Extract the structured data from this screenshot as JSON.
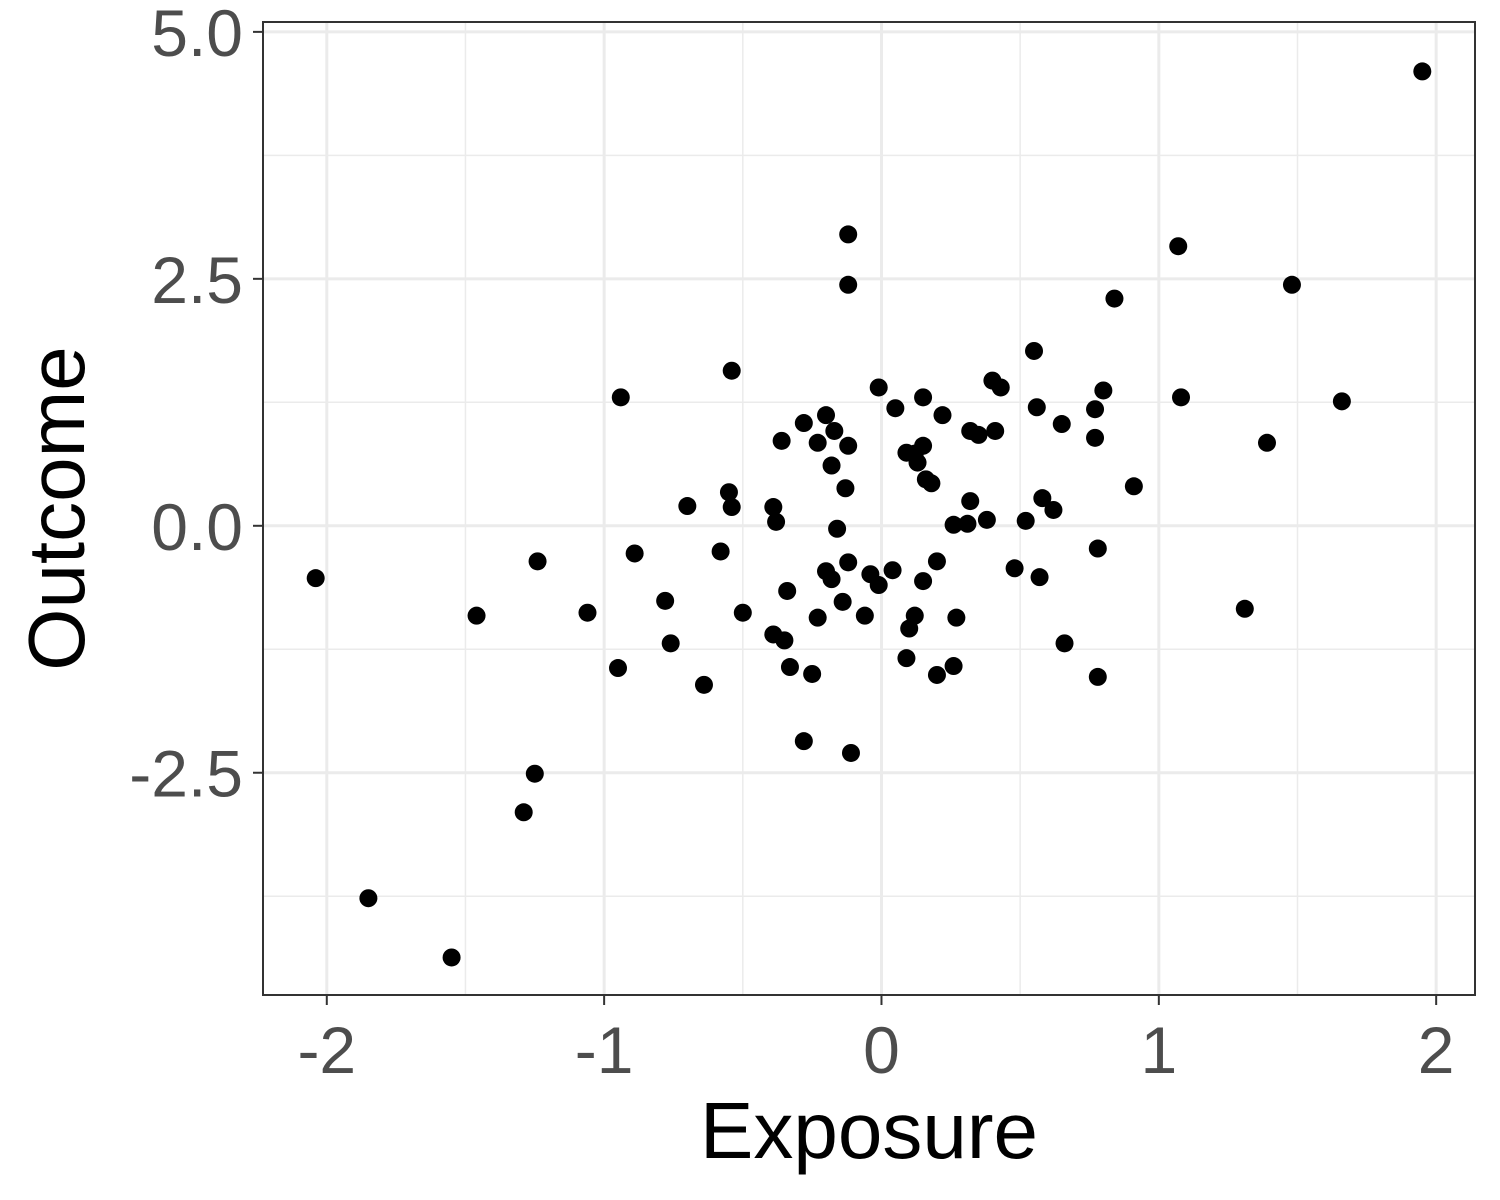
{
  "chart_data": {
    "type": "scatter",
    "title": "",
    "xlabel": "Exposure",
    "ylabel": "Outcome",
    "xlim": [
      -2.23,
      2.14
    ],
    "ylim": [
      -4.75,
      5.1
    ],
    "grid": true,
    "theme": "bw",
    "colors": {
      "point": "#000000",
      "grid": "#ebebeb",
      "panel_border": "#333333",
      "tick_label": "#4d4d4d"
    },
    "x_ticks": [
      {
        "value": -2,
        "label": "-2"
      },
      {
        "value": -1,
        "label": "-1"
      },
      {
        "value": 0,
        "label": "0"
      },
      {
        "value": 1,
        "label": "1"
      },
      {
        "value": 2,
        "label": "2"
      }
    ],
    "y_ticks": [
      {
        "value": -2.5,
        "label": "-2.5"
      },
      {
        "value": 0.0,
        "label": "0.0"
      },
      {
        "value": 2.5,
        "label": "2.5"
      },
      {
        "value": 5.0,
        "label": "5.0"
      }
    ],
    "x_minor_ticks": [
      -1.5,
      -0.5,
      0.5,
      1.5
    ],
    "y_minor_ticks": [
      -3.75,
      -1.25,
      1.25,
      3.75
    ],
    "series": [
      {
        "x": [
          1.95,
          -0.12,
          -0.12,
          1.07,
          1.48,
          0.84,
          0.55,
          -0.54,
          0.4,
          0.43,
          -0.01,
          0.8,
          0.15,
          -0.94,
          1.08,
          1.66,
          0.05,
          0.56,
          0.77,
          0.22,
          -0.2,
          -0.28,
          0.65,
          0.32,
          0.35,
          0.41,
          -0.17,
          -0.36,
          -0.23,
          0.77,
          -0.12,
          0.15,
          0.09,
          0.12,
          0.13,
          1.39,
          -0.18,
          0.16,
          0.18,
          0.91,
          -0.13,
          -0.55,
          0.58,
          0.32,
          -0.7,
          -0.54,
          -0.39,
          0.62,
          -0.38,
          0.38,
          0.52,
          0.31,
          0.26,
          -0.16,
          -0.58,
          0.78,
          -0.89,
          -1.24,
          -0.12,
          0.2,
          0.48,
          -0.2,
          -0.04,
          0.04,
          0.57,
          -0.18,
          0.15,
          -0.01,
          -2.04,
          -0.34,
          -0.78,
          -0.14,
          -1.06,
          -0.5,
          -1.46,
          1.31,
          -0.06,
          0.12,
          -0.23,
          0.27,
          0.1,
          -0.39,
          -0.35,
          0.66,
          -0.76,
          0.09,
          -0.95,
          -0.33,
          0.26,
          -0.25,
          0.2,
          0.78,
          -0.64,
          -0.28,
          -0.11,
          -1.25,
          -1.29,
          -1.85,
          -1.55
        ],
        "y": [
          4.6,
          2.95,
          2.44,
          2.83,
          2.44,
          2.3,
          1.77,
          1.57,
          1.47,
          1.4,
          1.4,
          1.37,
          1.3,
          1.3,
          1.3,
          1.26,
          1.19,
          1.2,
          1.18,
          1.12,
          1.12,
          1.04,
          1.03,
          0.96,
          0.92,
          0.96,
          0.96,
          0.86,
          0.84,
          0.89,
          0.81,
          0.81,
          0.74,
          0.73,
          0.64,
          0.84,
          0.61,
          0.47,
          0.43,
          0.4,
          0.38,
          0.34,
          0.28,
          0.25,
          0.2,
          0.19,
          0.19,
          0.16,
          0.04,
          0.06,
          0.05,
          0.02,
          0.01,
          -0.03,
          -0.26,
          -0.23,
          -0.28,
          -0.36,
          -0.37,
          -0.36,
          -0.43,
          -0.46,
          -0.49,
          -0.45,
          -0.52,
          -0.54,
          -0.56,
          -0.6,
          -0.53,
          -0.66,
          -0.76,
          -0.77,
          -0.88,
          -0.88,
          -0.91,
          -0.84,
          -0.91,
          -0.91,
          -0.93,
          -0.93,
          -1.04,
          -1.1,
          -1.16,
          -1.19,
          -1.19,
          -1.34,
          -1.44,
          -1.43,
          -1.42,
          -1.5,
          -1.51,
          -1.53,
          -1.61,
          -2.18,
          -2.3,
          -2.51,
          -2.9,
          -3.77,
          -4.37
        ]
      }
    ]
  }
}
